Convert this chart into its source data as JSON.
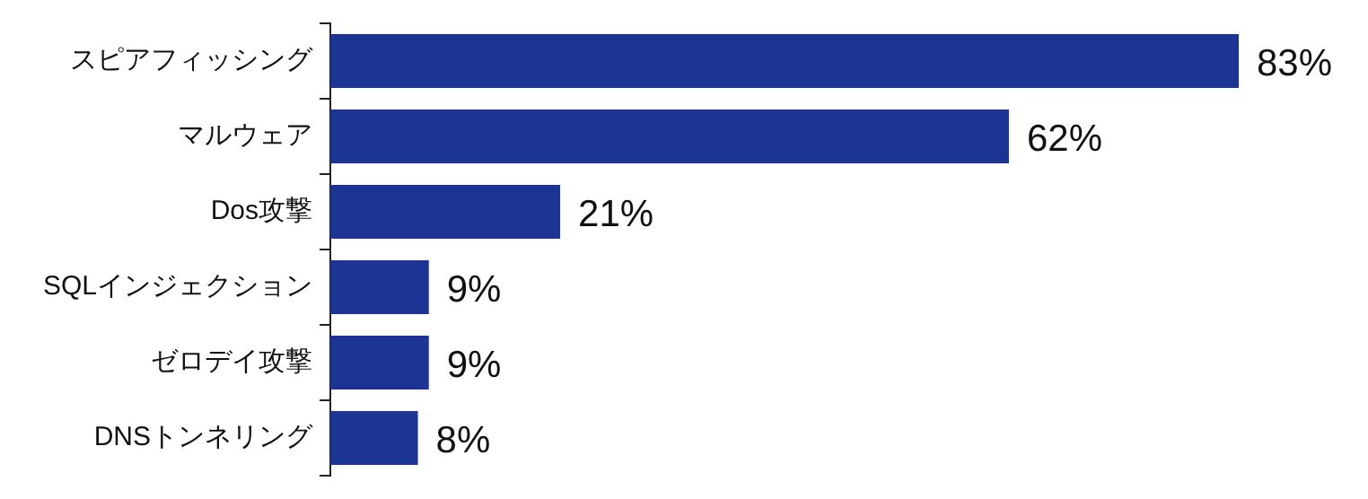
{
  "chart_data": {
    "type": "bar",
    "orientation": "horizontal",
    "tick_labels": "y",
    "categories": [
      "スピアフィッシング",
      "マルウェア",
      "Dos攻撃",
      "SQLインジェクション",
      "ゼロデイ攻撃",
      "DNSトンネリング"
    ],
    "values": [
      83,
      62,
      21,
      9,
      9,
      8
    ],
    "value_labels": [
      "83%",
      "62%",
      "21%",
      "9%",
      "9%",
      "8%"
    ],
    "color": "#1c3594",
    "legend": false
  }
}
